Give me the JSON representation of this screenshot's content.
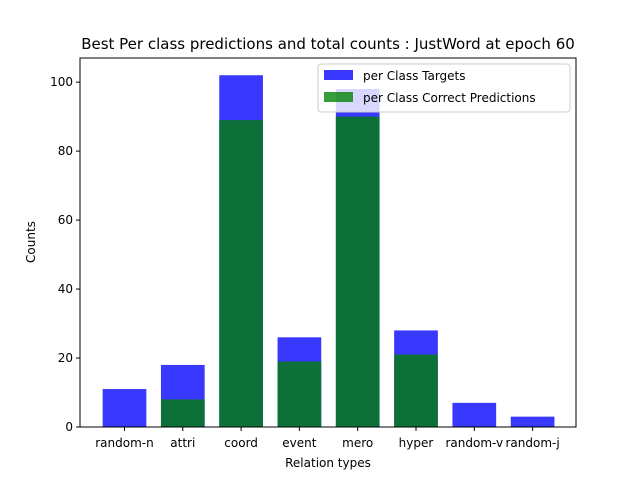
{
  "chart_data": {
    "type": "bar",
    "title": "Best Per class predictions and total counts : JustWord at epoch 60",
    "xlabel": "Relation types",
    "ylabel": "Counts",
    "categories": [
      "random-n",
      "attri",
      "coord",
      "event",
      "mero",
      "hyper",
      "random-v",
      "random-j"
    ],
    "series": [
      {
        "name": "per Class Targets",
        "values": [
          11,
          18,
          102,
          26,
          98,
          28,
          7,
          3
        ],
        "color": "#0000ff",
        "opacity": 0.78
      },
      {
        "name": "per Class Correct Predictions",
        "values": [
          0,
          8,
          89,
          19,
          90,
          21,
          0,
          0
        ],
        "color": "#008000",
        "opacity": 0.78
      }
    ],
    "ylim": [
      0,
      107
    ],
    "yticks": [
      0,
      20,
      40,
      60,
      80,
      100
    ],
    "grid": false,
    "legend_position": "top-right"
  }
}
